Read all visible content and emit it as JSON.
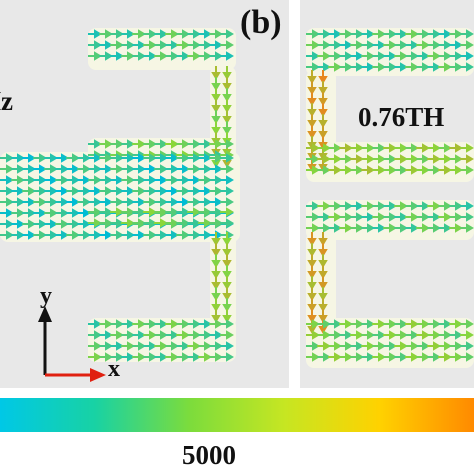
{
  "figure": {
    "panel_label": "(b)",
    "frequency_left": "Hz",
    "frequency_right": "0.76TH",
    "axis_y": "y",
    "axis_x": "x",
    "colorbar_tick": "5000",
    "colors": {
      "panel_bg": "#e8e8e8",
      "axis_y_arrow": "#111111",
      "axis_x_arrow": "#e02010",
      "field_low": "#00bcd4",
      "field_mid": "#8bd63a",
      "field_high": "#e8871e"
    },
    "colorbar_stops": [
      "#00c8e6",
      "#18d2a4",
      "#7cdc3c",
      "#c6e622",
      "#ffd200",
      "#ff8a00"
    ]
  }
}
